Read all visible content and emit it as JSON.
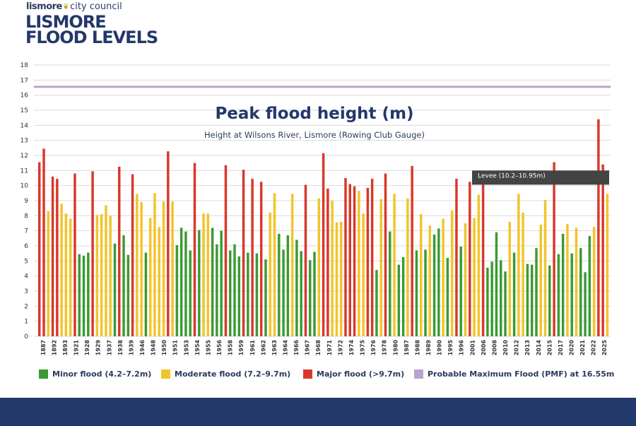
{
  "brand": {
    "name_bold": "lismore",
    "name_rest": "city council"
  },
  "page_title": {
    "line1": "LISMORE",
    "line2": "FLOOD LEVELS"
  },
  "colors": {
    "minor": "#3b9a33",
    "moderate": "#f2c42a",
    "major": "#d9372a",
    "pmf": "#b9a3cf",
    "levee": "#444444",
    "navy": "#23386b",
    "grid": "#d9d9d9"
  },
  "chart_data": {
    "type": "bar",
    "title": "Peak flood height (m)",
    "subtitle": "Height at Wilsons River, Lismore (Rowing Club Gauge)",
    "ylim": [
      0,
      18
    ],
    "yticks": [
      "0",
      "1",
      "2",
      "3",
      "4",
      "5",
      "6",
      "7",
      "8",
      "9",
      "10",
      "11",
      "12",
      "13",
      "14",
      "15",
      "16",
      "17",
      "18"
    ],
    "xlabel": "",
    "ylabel": "",
    "grid": true,
    "categories": [
      "1887",
      "1892",
      "1893",
      "1921",
      "1928",
      "1929",
      "1937",
      "1938",
      "1939",
      "1946",
      "1948",
      "1950",
      "1951",
      "1953",
      "1954",
      "1955",
      "1956",
      "1958",
      "1959",
      "1961",
      "1962",
      "1963",
      "1964",
      "1966",
      "1967",
      "1968",
      "1971",
      "1972",
      "1974",
      "1975",
      "1976",
      "1978",
      "1980",
      "1987",
      "1988",
      "1989",
      "1990",
      "1995",
      "1996",
      "2001",
      "2006",
      "2008",
      "2010",
      "2012",
      "2013",
      "2014",
      "2015",
      "2017",
      "2020",
      "2021",
      "2022",
      "2025"
    ],
    "values": [
      11.55,
      12.45,
      10.6,
      10.45,
      10.8,
      7.75,
      5.35,
      10.95,
      8.0,
      8.05,
      11.25,
      6.7,
      10.75,
      9.45,
      9.5,
      12.27,
      8.95,
      7.15,
      11.5,
      8.1,
      8.15,
      7.2,
      11.35,
      6.1,
      11.05,
      10.4,
      10.25,
      5.1,
      9.45,
      5.0,
      10.05,
      5.6,
      12.1,
      8.95,
      10.5,
      10.1,
      9.85,
      9.8,
      10.75,
      9.45,
      11.25,
      8.1,
      5.75,
      7.2,
      5.2,
      10.4,
      7.9,
      10.2,
      5.0,
      11.55,
      14.4,
      9.4
    ],
    "series": [
      {
        "name": "Minor flood (4.2–7.2m)",
        "color_key": "minor",
        "values": [
          [
            "1928a",
            5.45
          ],
          [
            "1929",
            5.35
          ],
          [
            "1937",
            5.55
          ],
          [
            "1946",
            6.15
          ],
          [
            "1946b",
            6.7
          ],
          [
            "1948",
            5.4
          ],
          [
            "1951",
            5.55
          ],
          [
            "1955a",
            6.05
          ],
          [
            "1955b",
            7.2
          ],
          [
            "1955c",
            6.95
          ],
          [
            "1956",
            5.7
          ],
          [
            "1958",
            7.05
          ],
          [
            "1961",
            7.2
          ],
          [
            "1961b",
            6.1
          ],
          [
            "1962",
            7.0
          ],
          [
            "1963",
            5.7
          ],
          [
            "1963b",
            6.1
          ],
          [
            "1964",
            5.3
          ],
          [
            "1966",
            5.55
          ],
          [
            "1966b",
            5.5
          ],
          [
            "1967",
            5.1
          ],
          [
            "1968",
            6.8
          ],
          [
            "1968b",
            5.75
          ],
          [
            "1971",
            6.7
          ],
          [
            "1971b",
            6.4
          ],
          [
            "1972",
            5.65
          ],
          [
            "1972b",
            5.05
          ],
          [
            "1974",
            5.6
          ],
          [
            "1988",
            4.4
          ],
          [
            "1988b",
            6.95
          ],
          [
            "1988c",
            4.75
          ],
          [
            "1989",
            5.25
          ],
          [
            "1990",
            5.7
          ],
          [
            "1995",
            5.75
          ],
          [
            "1995b",
            6.75
          ],
          [
            "1996",
            7.15
          ],
          [
            "2001",
            5.2
          ],
          [
            "2006",
            5.95
          ],
          [
            "2010",
            4.55
          ],
          [
            "2010b",
            4.95
          ],
          [
            "2010c",
            6.9
          ],
          [
            "2010d",
            5.05
          ],
          [
            "2012",
            4.3
          ],
          [
            "2013",
            5.55
          ],
          [
            "2014",
            4.8
          ],
          [
            "2014b",
            4.75
          ],
          [
            "2015",
            5.85
          ],
          [
            "2017",
            4.7
          ],
          [
            "2017b",
            5.45
          ],
          [
            "2020",
            6.8
          ],
          [
            "2020b",
            5.5
          ],
          [
            "2021",
            5.85
          ],
          [
            "2021b",
            4.25
          ],
          [
            "2022",
            6.65
          ]
        ]
      },
      {
        "name": "Moderate flood (7.2–9.7m)",
        "color_key": "moderate",
        "values": [
          [
            "1892",
            8.3
          ],
          [
            "1921",
            8.8
          ],
          [
            "1921b",
            8.15
          ],
          [
            "1928",
            7.8
          ],
          [
            "1938",
            8.05
          ],
          [
            "1938b",
            8.1
          ],
          [
            "1939",
            8.7
          ],
          [
            "1939b",
            8.0
          ],
          [
            "1950",
            9.45
          ],
          [
            "1950b",
            8.9
          ],
          [
            "1951",
            7.85
          ],
          [
            "1953",
            9.5
          ],
          [
            "1953b",
            7.25
          ],
          [
            "1954",
            8.95
          ],
          [
            "1954b",
            8.95
          ],
          [
            "1959",
            8.15
          ],
          [
            "1959b",
            8.15
          ],
          [
            "1967",
            8.2
          ],
          [
            "1967b",
            9.5
          ],
          [
            "1971",
            9.45
          ],
          [
            "1974",
            9.15
          ],
          [
            "1975",
            9.0
          ],
          [
            "1975b",
            7.55
          ],
          [
            "1976",
            7.6
          ],
          [
            "1980",
            9.65
          ],
          [
            "1980b",
            8.15
          ],
          [
            "1988",
            9.1
          ],
          [
            "1988b",
            9.45
          ],
          [
            "1989",
            9.15
          ],
          [
            "1990",
            8.1
          ],
          [
            "1995",
            7.35
          ],
          [
            "1996",
            7.8
          ],
          [
            "2001",
            8.35
          ],
          [
            "2006",
            7.5
          ],
          [
            "2006b",
            7.85
          ],
          [
            "2008",
            9.4
          ],
          [
            "2012",
            7.6
          ],
          [
            "2013",
            9.45
          ],
          [
            "2013b",
            8.2
          ],
          [
            "2015",
            7.4
          ],
          [
            "2015b",
            9.05
          ],
          [
            "2020",
            7.45
          ],
          [
            "2020b",
            7.2
          ],
          [
            "2022",
            7.25
          ],
          [
            "2025",
            9.45
          ]
        ]
      },
      {
        "name": "Major flood (>9.7m)",
        "color_key": "major",
        "values": [
          [
            "1887",
            11.55
          ],
          [
            "1887b",
            12.45
          ],
          [
            "1892",
            10.6
          ],
          [
            "1893",
            10.45
          ],
          [
            "1928",
            10.8
          ],
          [
            "1937",
            10.95
          ],
          [
            "1946",
            11.25
          ],
          [
            "1948",
            10.75
          ],
          [
            "1954",
            12.27
          ],
          [
            "1956",
            11.5
          ],
          [
            "1962",
            11.35
          ],
          [
            "1964",
            11.05
          ],
          [
            "1966",
            10.45
          ],
          [
            "1966b",
            10.25
          ],
          [
            "1972",
            10.05
          ],
          [
            "1974",
            12.15
          ],
          [
            "1974b",
            9.8
          ],
          [
            "1976",
            10.5
          ],
          [
            "1978",
            10.1
          ],
          [
            "1978b",
            9.95
          ],
          [
            "1987",
            9.85
          ],
          [
            "1987b",
            10.45
          ],
          [
            "1988",
            10.8
          ],
          [
            "1989",
            11.3
          ],
          [
            "2001",
            10.45
          ],
          [
            "2006",
            10.25
          ],
          [
            "2008",
            10.35
          ],
          [
            "2017",
            11.55
          ],
          [
            "2022",
            14.4
          ],
          [
            "2022b",
            11.4
          ]
        ]
      }
    ],
    "reference_lines": [
      {
        "label": "Probable Maximum Flood (PMF) at 16.55m",
        "value": 16.55,
        "color_key": "pmf"
      },
      {
        "label": "Levee (10.2–10.95m)",
        "from": 10.2,
        "to": 10.95,
        "start_year": "2006",
        "color_key": "levee"
      }
    ]
  },
  "legend": {
    "items": [
      {
        "label": "Minor flood (4.2–7.2m)",
        "color_key": "minor"
      },
      {
        "label": "Moderate flood (7.2–9.7m)",
        "color_key": "moderate"
      },
      {
        "label": "Major flood (>9.7m)",
        "color_key": "major"
      },
      {
        "label": "Probable Maximum Flood (PMF) at 16.55m",
        "color_key": "pmf"
      }
    ]
  }
}
